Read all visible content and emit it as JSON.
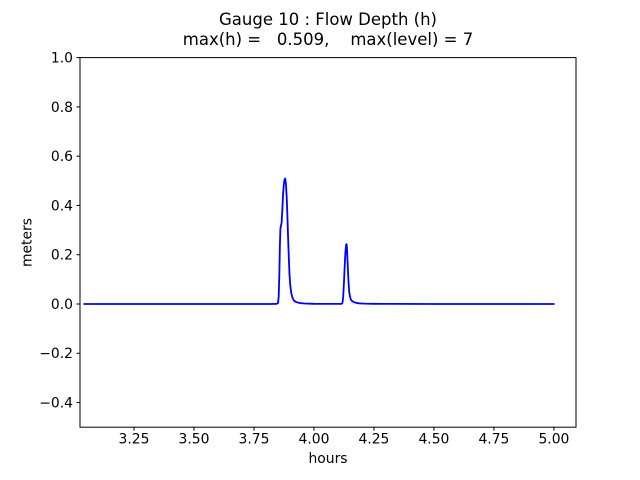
{
  "chart_data": {
    "type": "line",
    "title": "Gauge 10 : Flow Depth (h)",
    "subtitle": "max(h) =   0.509,    max(level) = 7",
    "xlabel": "hours",
    "ylabel": "meters",
    "max_h": 0.509,
    "max_level": 7,
    "xlim": [
      3.025,
      5.092
    ],
    "ylim": [
      -0.5,
      1.0
    ],
    "xticks": [
      3.25,
      3.5,
      3.75,
      4.0,
      4.25,
      4.5,
      4.75,
      5.0
    ],
    "xtick_labels": [
      "3.25",
      "3.50",
      "3.75",
      "4.00",
      "4.25",
      "4.50",
      "4.75",
      "5.00"
    ],
    "yticks": [
      1.0,
      0.8,
      0.6,
      0.4,
      0.2,
      0.0,
      -0.2,
      -0.4
    ],
    "ytick_labels": [
      "1.0",
      "0.8",
      "0.6",
      "0.4",
      "0.2",
      "0.0",
      "−0.2",
      "−0.4"
    ],
    "grid": false,
    "legend": null,
    "line_color": "#0000ff",
    "line_width": 1.8,
    "spine_color": "#000000",
    "series": [
      {
        "name": "h",
        "x": [
          3.042,
          3.2,
          3.4,
          3.6,
          3.75,
          3.82,
          3.845,
          3.85,
          3.853,
          3.856,
          3.858,
          3.86,
          3.8625,
          3.865,
          3.868,
          3.871,
          3.874,
          3.877,
          3.88,
          3.883,
          3.886,
          3.889,
          3.892,
          3.895,
          3.898,
          3.902,
          3.906,
          3.911,
          3.917,
          3.925,
          3.94,
          3.96,
          4.0,
          4.05,
          4.09,
          4.115,
          4.119,
          4.122,
          4.125,
          4.128,
          4.131,
          4.134,
          4.136,
          4.138,
          4.141,
          4.144,
          4.147,
          4.15,
          4.154,
          4.16,
          4.17,
          4.185,
          4.21,
          4.25,
          4.32,
          4.5,
          4.75,
          5.0
        ],
        "y": [
          0,
          0,
          0,
          0,
          0,
          0,
          0.001,
          0.004,
          0.03,
          0.13,
          0.24,
          0.305,
          0.318,
          0.33,
          0.38,
          0.44,
          0.48,
          0.503,
          0.509,
          0.49,
          0.44,
          0.37,
          0.28,
          0.19,
          0.12,
          0.07,
          0.042,
          0.024,
          0.014,
          0.008,
          0.004,
          0.002,
          0.001,
          0.0005,
          0.0003,
          0.001,
          0.005,
          0.03,
          0.09,
          0.155,
          0.21,
          0.24,
          0.243,
          0.215,
          0.15,
          0.09,
          0.05,
          0.03,
          0.018,
          0.011,
          0.006,
          0.003,
          0.0015,
          0.0008,
          0.0003,
          0,
          0,
          0
        ]
      }
    ]
  }
}
